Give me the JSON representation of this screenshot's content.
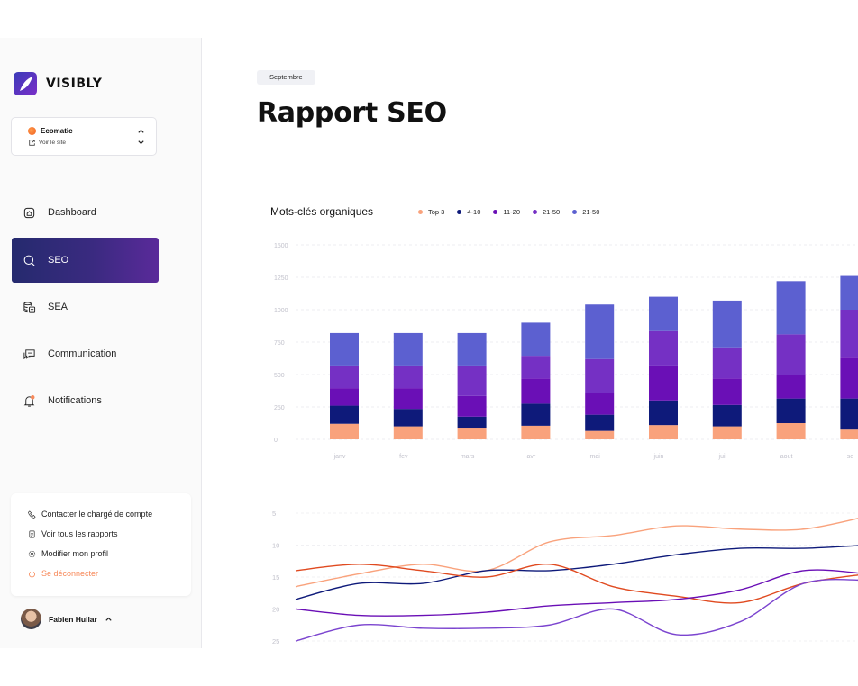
{
  "app": {
    "name": "VISIBLY"
  },
  "site": {
    "name": "Ecomatic",
    "link": "Voir le site"
  },
  "nav": [
    {
      "id": "dashboard",
      "label": "Dashboard",
      "icon": "home-icon",
      "active": false
    },
    {
      "id": "seo",
      "label": "SEO",
      "icon": "search-icon",
      "active": true
    },
    {
      "id": "sea",
      "label": "SEA",
      "icon": "coins-icon",
      "active": false
    },
    {
      "id": "communication",
      "label": "Communication",
      "icon": "chat-icon",
      "active": false
    },
    {
      "id": "notifications",
      "label": "Notifications",
      "icon": "bell-icon",
      "active": false
    }
  ],
  "account_menu": [
    {
      "label": "Contacter le chargé de compte",
      "icon": "phone-icon"
    },
    {
      "label": "Voir tous les rapports",
      "icon": "document-icon"
    },
    {
      "label": "Modifier mon profil",
      "icon": "gear-icon"
    },
    {
      "label": "Se déconnecter",
      "icon": "power-icon"
    }
  ],
  "user": {
    "name": "Fabien Hullar"
  },
  "header": {
    "period": "Septembre",
    "title": "Rapport SEO"
  },
  "colors": {
    "top3": "#f9a27c",
    "r4_10": "#0e1a7a",
    "r11_20": "#6a0fb6",
    "r21_50a": "#7530c4",
    "r21_50b": "#5c60d0",
    "logout": "#f7895a"
  },
  "chart_data": [
    {
      "type": "bar",
      "stacked": true,
      "title": "Mots-clés organiques",
      "categories": [
        "janv",
        "fev",
        "mars",
        "avr",
        "mai",
        "juin",
        "juil",
        "aout",
        "se"
      ],
      "ylim": [
        0,
        1500
      ],
      "yticks": [
        0,
        250,
        500,
        750,
        1000,
        1250,
        1500
      ],
      "grid": true,
      "legend_position": "top",
      "series": [
        {
          "name": "Top 3",
          "color": "#f9a27c",
          "values": [
            120,
            100,
            90,
            105,
            65,
            110,
            100,
            125,
            75
          ]
        },
        {
          "name": "4-10",
          "color": "#0e1a7a",
          "values": [
            140,
            135,
            85,
            170,
            125,
            190,
            165,
            190,
            240
          ]
        },
        {
          "name": "11-20",
          "color": "#6a0fb6",
          "values": [
            135,
            160,
            160,
            195,
            165,
            270,
            205,
            185,
            315
          ]
        },
        {
          "name": "21-50",
          "color": "#7530c4",
          "values": [
            175,
            175,
            235,
            175,
            265,
            265,
            240,
            310,
            370
          ]
        },
        {
          "name": "21-50",
          "color": "#5c60d0",
          "values": [
            250,
            250,
            250,
            255,
            420,
            265,
            360,
            410,
            260
          ]
        }
      ]
    },
    {
      "type": "line",
      "yticks": [
        5,
        10,
        15,
        20,
        25
      ],
      "ylim": [
        5,
        25
      ],
      "y_inverted": true,
      "grid": true,
      "series": [
        {
          "color": "#f9a27c",
          "values": [
            16.5,
            14.5,
            13,
            14,
            9.5,
            8.5,
            7,
            7.5,
            7.5,
            5.5
          ]
        },
        {
          "color": "#0e1a7a",
          "values": [
            18.5,
            16,
            16,
            14,
            14,
            13,
            11.5,
            10.5,
            10.5,
            10
          ]
        },
        {
          "color": "#e04a20",
          "values": [
            14,
            13,
            14,
            15,
            13,
            16.5,
            18,
            19,
            16,
            14.5
          ]
        },
        {
          "color": "#6a0fb6",
          "values": [
            20,
            21,
            21,
            20.5,
            19.5,
            19,
            18.5,
            17,
            14,
            14.5
          ]
        },
        {
          "color": "#7b44cf",
          "values": [
            25,
            22.5,
            23,
            23,
            22.5,
            20,
            24,
            22,
            16,
            15.5
          ]
        }
      ]
    }
  ]
}
